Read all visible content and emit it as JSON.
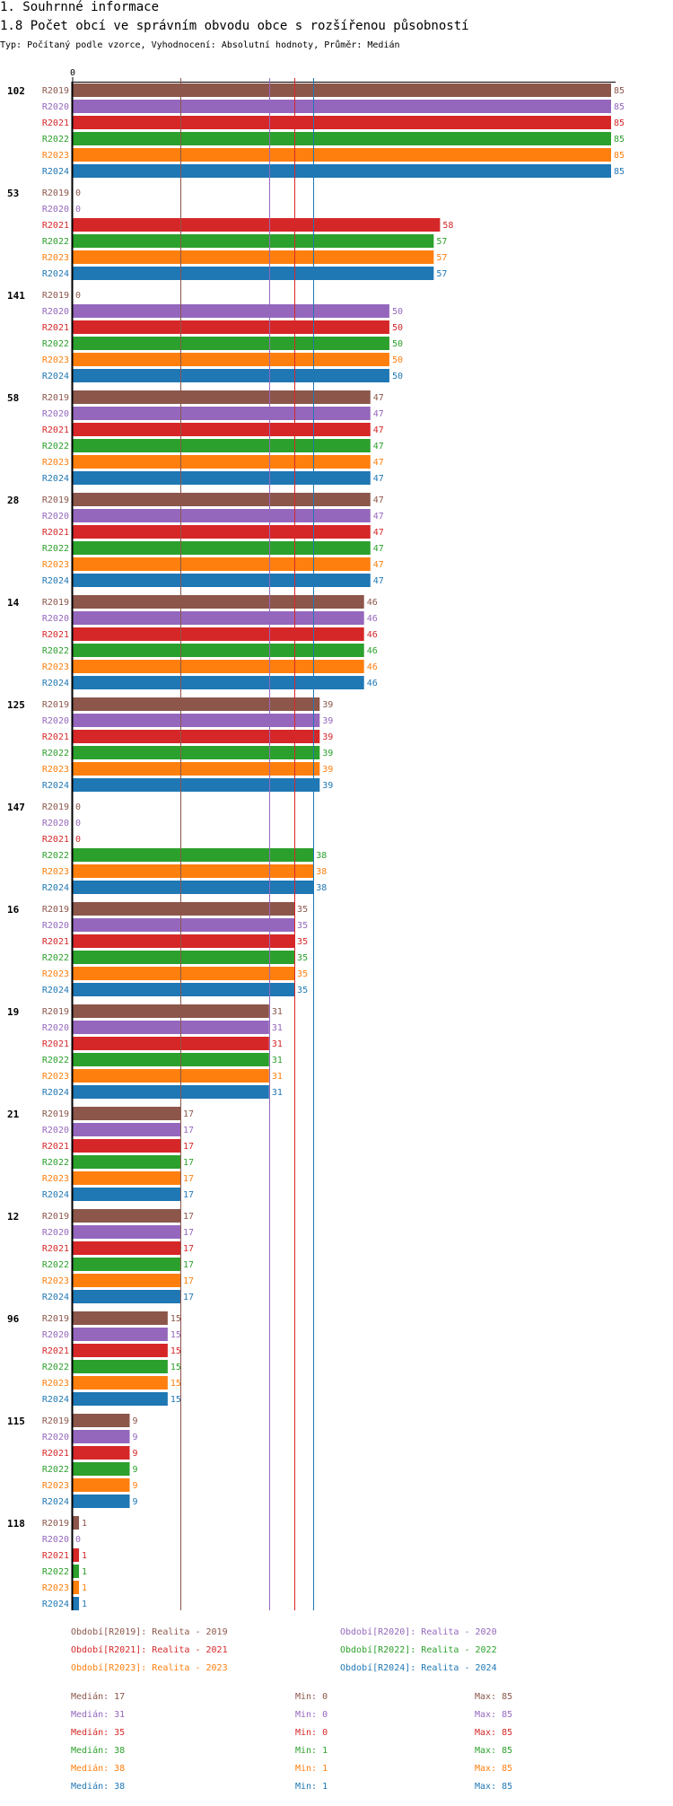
{
  "header": {
    "section": "1. Souhrnné informace",
    "title": "1.8 Počet obcí ve správním obvodu obce s rozšířenou působností",
    "subtitle": "Typ: Počítaný podle vzorce, Vyhodnocení: Absolutní hodnoty, Průměr: Medián"
  },
  "chart_data": {
    "type": "bar",
    "orientation": "horizontal",
    "title": "1.8 Počet obcí ve správním obvodu obce s rozšířenou působností",
    "axis_zero_label": "0",
    "xlim": [
      0,
      85
    ],
    "groups": [
      "102",
      "53",
      "141",
      "58",
      "28",
      "14",
      "125",
      "147",
      "16",
      "19",
      "21",
      "12",
      "96",
      "115",
      "118"
    ],
    "series": [
      {
        "name": "R2019",
        "color": "#8c564b",
        "values": [
          85,
          0,
          0,
          47,
          47,
          46,
          39,
          0,
          35,
          31,
          17,
          17,
          15,
          9,
          1
        ]
      },
      {
        "name": "R2020",
        "color": "#9467bd",
        "values": [
          85,
          0,
          50,
          47,
          47,
          46,
          39,
          0,
          35,
          31,
          17,
          17,
          15,
          9,
          0
        ]
      },
      {
        "name": "R2021",
        "color": "#d62728",
        "values": [
          85,
          58,
          50,
          47,
          47,
          46,
          39,
          0,
          35,
          31,
          17,
          17,
          15,
          9,
          1
        ]
      },
      {
        "name": "R2022",
        "color": "#2ca02c",
        "values": [
          85,
          57,
          50,
          47,
          47,
          46,
          39,
          38,
          35,
          31,
          17,
          17,
          15,
          9,
          1
        ]
      },
      {
        "name": "R2023",
        "color": "#ff7f0e",
        "values": [
          85,
          57,
          50,
          47,
          47,
          46,
          39,
          38,
          35,
          31,
          17,
          17,
          15,
          9,
          1
        ]
      },
      {
        "name": "R2024",
        "color": "#1f77b4",
        "values": [
          85,
          57,
          50,
          47,
          47,
          46,
          39,
          38,
          35,
          31,
          17,
          17,
          15,
          9,
          1
        ]
      }
    ],
    "reference_lines": [
      {
        "series": "R2019",
        "median": 17
      },
      {
        "series": "R2020",
        "median": 31
      },
      {
        "series": "R2021",
        "median": 35
      },
      {
        "series": "R2022",
        "median": 38
      },
      {
        "series": "R2023",
        "median": 38
      },
      {
        "series": "R2024",
        "median": 38
      }
    ],
    "legend": [
      {
        "text": "Období[R2019]: Realita - 2019",
        "color": "#8c564b"
      },
      {
        "text": "Období[R2020]: Realita - 2020",
        "color": "#9467bd"
      },
      {
        "text": "Období[R2021]: Realita - 2021",
        "color": "#d62728"
      },
      {
        "text": "Období[R2022]: Realita - 2022",
        "color": "#2ca02c"
      },
      {
        "text": "Období[R2023]: Realita - 2023",
        "color": "#ff7f0e"
      },
      {
        "text": "Období[R2024]: Realita - 2024",
        "color": "#1f77b4"
      }
    ],
    "stats": [
      {
        "median": "Medián: 17",
        "min": "Min: 0",
        "max": "Max: 85",
        "color": "#8c564b"
      },
      {
        "median": "Medián: 31",
        "min": "Min: 0",
        "max": "Max: 85",
        "color": "#9467bd"
      },
      {
        "median": "Medián: 35",
        "min": "Min: 0",
        "max": "Max: 85",
        "color": "#d62728"
      },
      {
        "median": "Medián: 38",
        "min": "Min: 1",
        "max": "Max: 85",
        "color": "#2ca02c"
      },
      {
        "median": "Medián: 38",
        "min": "Min: 1",
        "max": "Max: 85",
        "color": "#ff7f0e"
      },
      {
        "median": "Medián: 38",
        "min": "Min: 1",
        "max": "Max: 85",
        "color": "#1f77b4"
      }
    ]
  }
}
